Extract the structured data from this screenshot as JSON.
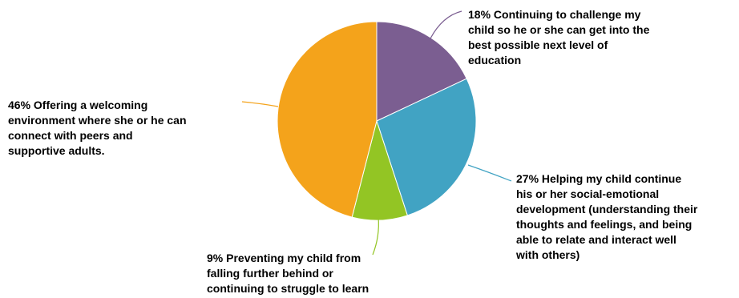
{
  "chart_data": {
    "type": "pie",
    "start_angle_deg": 0,
    "direction": "clockwise",
    "slices": [
      {
        "value": 18,
        "color": "#7b5e91",
        "label_lines": [
          "18% Continuing to challenge my",
          "child so he or she can get into the",
          "best possible next level of",
          "education"
        ]
      },
      {
        "value": 27,
        "color": "#41a3c3",
        "label_lines": [
          "27% Helping my child continue",
          "his or her social-emotional",
          "development (understanding their",
          "thoughts and feelings, and being",
          "able to relate and interact well",
          "with others)"
        ]
      },
      {
        "value": 9,
        "color": "#93c524",
        "label_lines": [
          "9% Preventing my child from",
          "falling further behind or",
          "continuing to struggle to learn"
        ]
      },
      {
        "value": 46,
        "color": "#f4a31b",
        "label_lines": [
          "46% Offering a welcoming",
          "environment where she or he can",
          "connect with peers and",
          "supportive adults."
        ]
      }
    ]
  }
}
